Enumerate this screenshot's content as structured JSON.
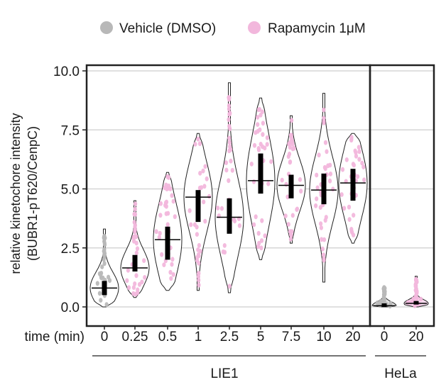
{
  "chart_data": {
    "type": "violin",
    "ylabel_line1": "relative kinetochore intensity",
    "ylabel_line2": "(BUBR1-pT620/CenpC)",
    "xlabel": "time (min)",
    "ylim": [
      0,
      10
    ],
    "yticks": [
      "0.0",
      "2.5",
      "5.0",
      "7.5",
      "10.0"
    ],
    "ytick_values": [
      0,
      2.5,
      5,
      7.5,
      10
    ],
    "grid": true,
    "legend_position": "top",
    "legend": [
      {
        "name": "Vehicle (DMSO)",
        "color": "#b8b8b8"
      },
      {
        "name": "Rapamycin 1μM",
        "color": "#f2b7dc"
      }
    ],
    "panels": [
      {
        "name": "LIE1",
        "groups": [
          {
            "x": "0",
            "series": "Vehicle (DMSO)",
            "median": 0.8,
            "q1": 0.5,
            "q3": 1.1,
            "min": 0.0,
            "max": 3.3
          },
          {
            "x": "0.25",
            "series": "Rapamycin 1μM",
            "median": 1.65,
            "q1": 1.5,
            "q3": 2.2,
            "min": 0.4,
            "max": 4.5
          },
          {
            "x": "0.5",
            "series": "Rapamycin 1μM",
            "median": 2.85,
            "q1": 2.0,
            "q3": 3.4,
            "min": 0.7,
            "max": 5.7
          },
          {
            "x": "1",
            "series": "Rapamycin 1μM",
            "median": 4.65,
            "q1": 3.6,
            "q3": 4.95,
            "min": 0.7,
            "max": 7.35
          },
          {
            "x": "2.5",
            "series": "Rapamycin 1μM",
            "median": 3.8,
            "q1": 3.1,
            "q3": 4.6,
            "min": 0.6,
            "max": 9.5
          },
          {
            "x": "5",
            "series": "Rapamycin 1μM",
            "median": 5.35,
            "q1": 4.8,
            "q3": 6.5,
            "min": 2.0,
            "max": 8.85
          },
          {
            "x": "7.5",
            "series": "Rapamycin 1μM",
            "median": 5.15,
            "q1": 4.6,
            "q3": 5.6,
            "min": 2.7,
            "max": 8.1
          },
          {
            "x": "10",
            "series": "Rapamycin 1μM",
            "median": 4.95,
            "q1": 4.35,
            "q3": 5.65,
            "min": 1.05,
            "max": 9.05
          },
          {
            "x": "20",
            "series": "Rapamycin 1μM",
            "median": 5.25,
            "q1": 4.5,
            "q3": 5.85,
            "min": 2.7,
            "max": 7.35
          }
        ]
      },
      {
        "name": "HeLa",
        "groups": [
          {
            "x": "0",
            "series": "Vehicle (DMSO)",
            "median": 0.05,
            "q1": 0.0,
            "q3": 0.15,
            "min": 0.0,
            "max": 0.85
          },
          {
            "x": "20",
            "series": "Rapamycin 1μM",
            "median": 0.15,
            "q1": 0.1,
            "q3": 0.25,
            "min": 0.0,
            "max": 1.3
          }
        ]
      }
    ]
  }
}
